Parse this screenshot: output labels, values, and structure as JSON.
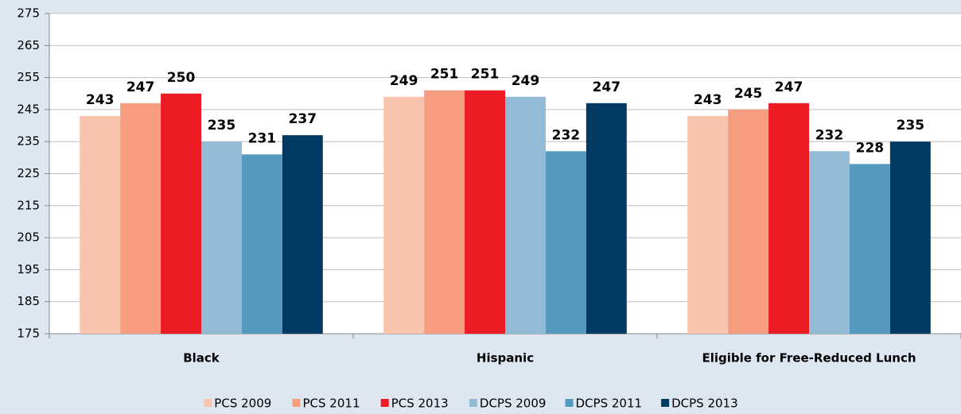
{
  "chart_data": {
    "type": "bar",
    "categories": [
      "Black",
      "Hispanic",
      "Eligible for Free-Reduced Lunch"
    ],
    "series": [
      {
        "name": "PCS 2009",
        "color": "#f9c4ae",
        "values": [
          243,
          249,
          243
        ]
      },
      {
        "name": "PCS 2011",
        "color": "#f59d7e",
        "values": [
          247,
          251,
          245
        ]
      },
      {
        "name": "PCS 2013",
        "color": "#ed1c24",
        "values": [
          250,
          251,
          247
        ]
      },
      {
        "name": "DCPS 2009",
        "color": "#93bbd6",
        "values": [
          235,
          249,
          232
        ]
      },
      {
        "name": "DCPS 2011",
        "color": "#5599bf",
        "values": [
          231,
          232,
          228
        ]
      },
      {
        "name": "DCPS 2013",
        "color": "#003a63",
        "values": [
          237,
          247,
          235
        ]
      }
    ],
    "ylim": [
      175,
      275
    ],
    "yticks": [
      175,
      185,
      195,
      205,
      215,
      225,
      235,
      245,
      255,
      265,
      275
    ],
    "grid": true,
    "legend": "bottom"
  }
}
